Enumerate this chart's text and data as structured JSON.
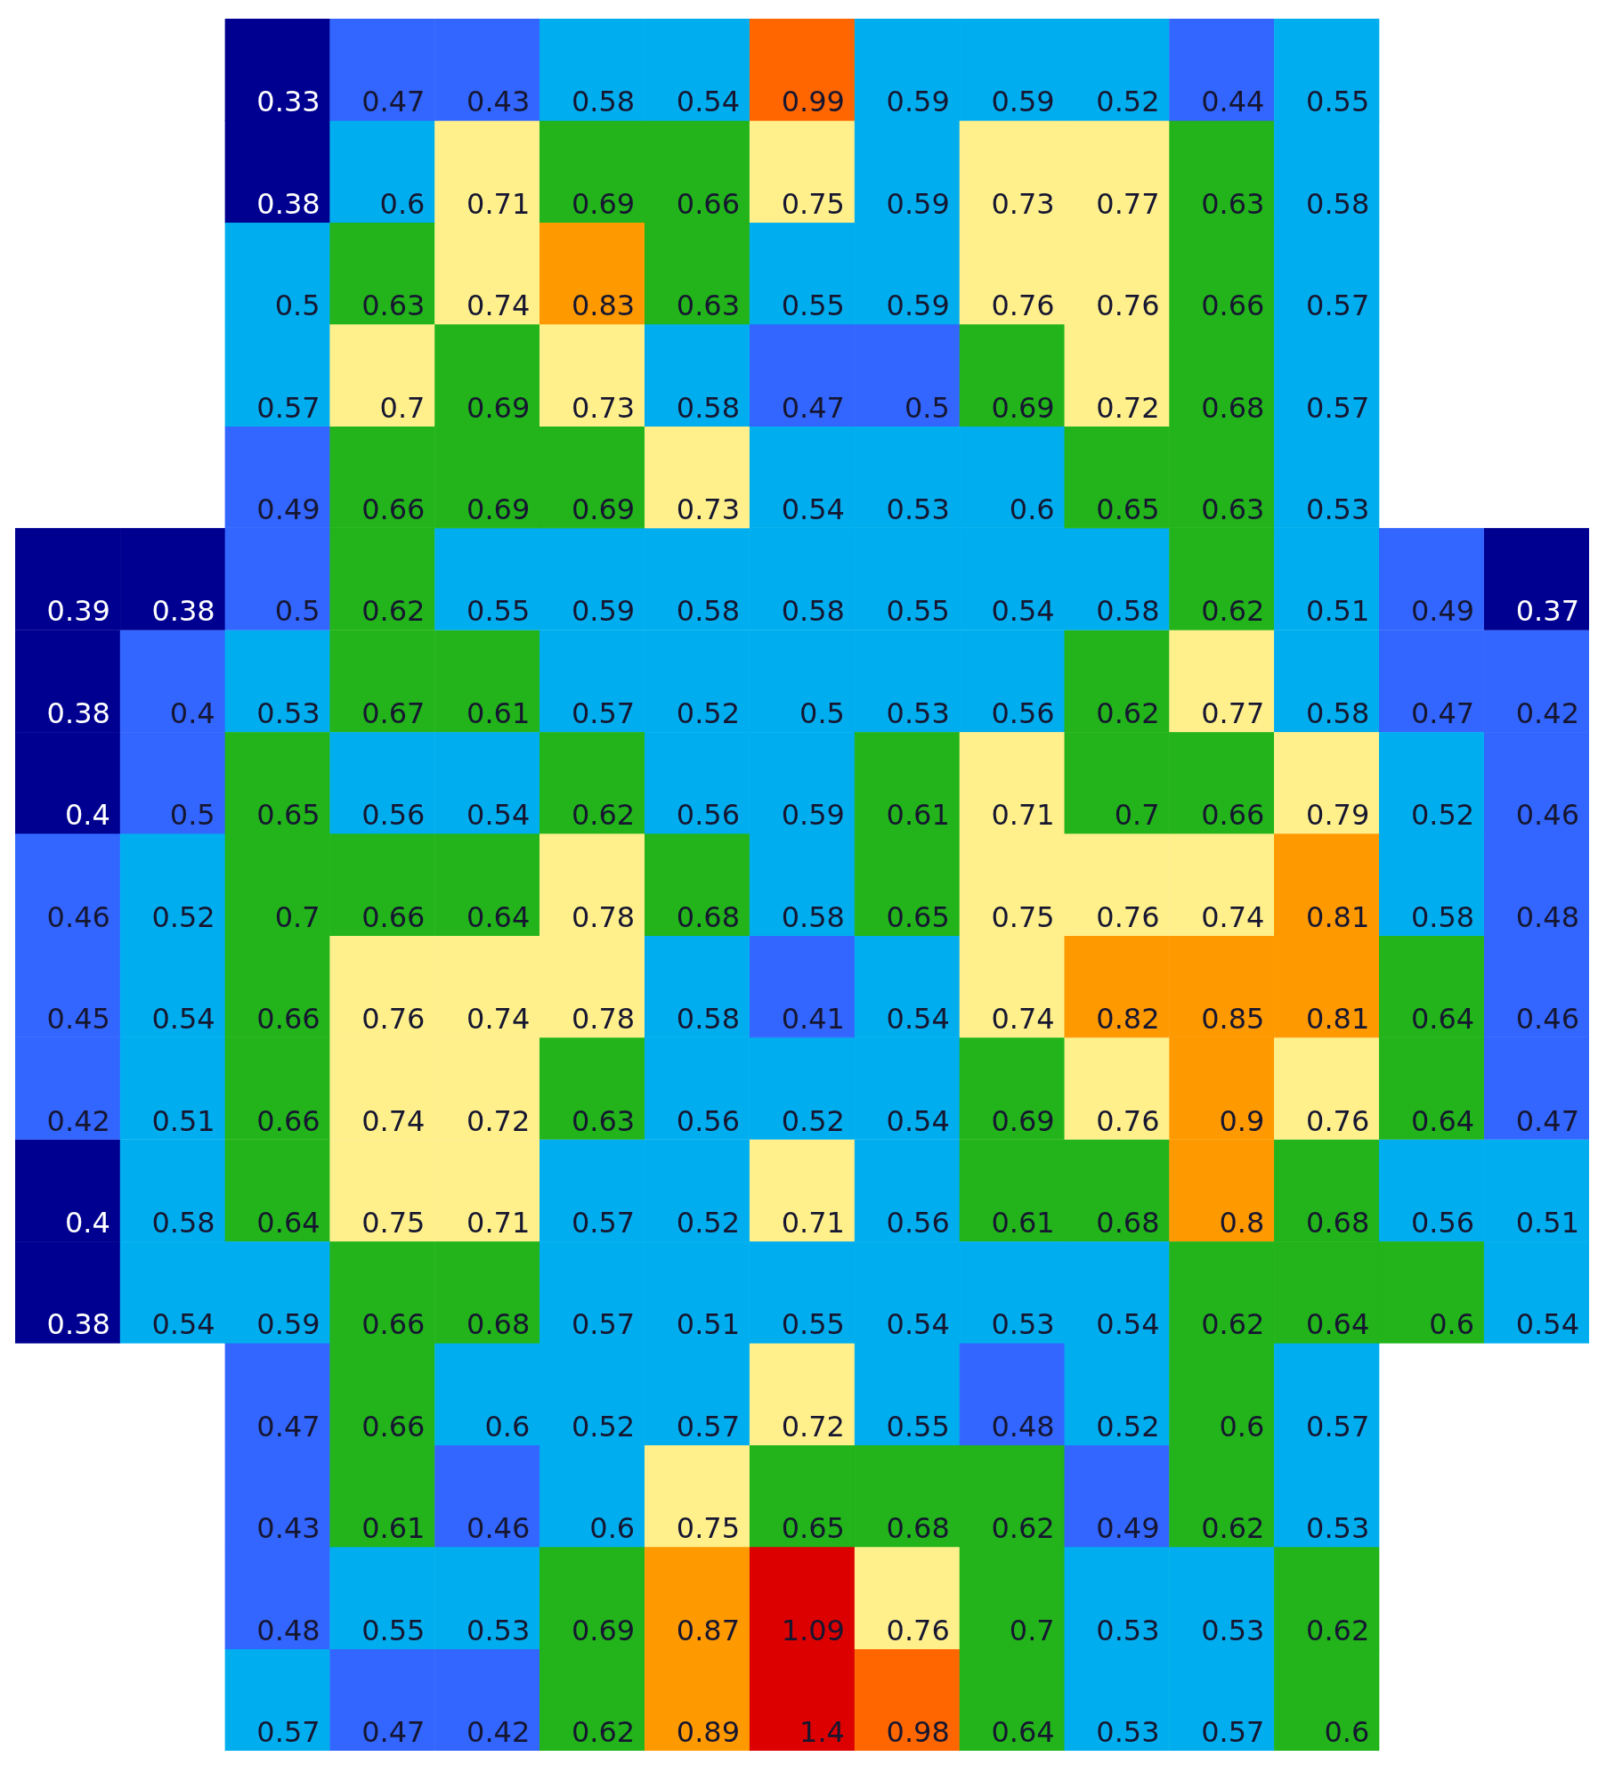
{
  "chart_data": {
    "type": "heatmap",
    "tick_labels": false,
    "data_labels": true,
    "categories": [
      null,
      null,
      null,
      null,
      null,
      null,
      null,
      null,
      null,
      null,
      null,
      null,
      null,
      null,
      null
    ],
    "y_categories": [
      null,
      null,
      null,
      null,
      null,
      null,
      null,
      null,
      null,
      null,
      null,
      null,
      null,
      null,
      null,
      null,
      null
    ],
    "cells": [
      [
        null,
        null,
        0.33,
        0.47,
        0.43,
        0.58,
        0.54,
        0.99,
        0.59,
        0.59,
        0.52,
        0.44,
        0.55,
        null,
        null
      ],
      [
        null,
        null,
        0.38,
        0.6,
        0.71,
        0.69,
        0.66,
        0.75,
        0.59,
        0.73,
        0.77,
        0.63,
        0.58,
        null,
        null
      ],
      [
        null,
        null,
        0.5,
        0.63,
        0.74,
        0.83,
        0.63,
        0.55,
        0.59,
        0.76,
        0.76,
        0.66,
        0.57,
        null,
        null
      ],
      [
        null,
        null,
        0.57,
        0.7,
        0.69,
        0.73,
        0.58,
        0.47,
        0.5,
        0.69,
        0.72,
        0.68,
        0.57,
        null,
        null
      ],
      [
        null,
        null,
        0.49,
        0.66,
        0.69,
        0.69,
        0.73,
        0.54,
        0.53,
        0.6,
        0.65,
        0.63,
        0.53,
        null,
        null
      ],
      [
        0.39,
        0.38,
        0.5,
        0.62,
        0.55,
        0.59,
        0.58,
        0.58,
        0.55,
        0.54,
        0.58,
        0.62,
        0.51,
        0.49,
        0.37
      ],
      [
        0.38,
        0.4,
        0.53,
        0.67,
        0.61,
        0.57,
        0.52,
        0.5,
        0.53,
        0.56,
        0.62,
        0.77,
        0.58,
        0.47,
        0.42
      ],
      [
        0.4,
        0.5,
        0.65,
        0.56,
        0.54,
        0.62,
        0.56,
        0.59,
        0.61,
        0.71,
        0.7,
        0.66,
        0.79,
        0.52,
        0.46
      ],
      [
        0.46,
        0.52,
        0.7,
        0.66,
        0.64,
        0.78,
        0.68,
        0.58,
        0.65,
        0.75,
        0.76,
        0.74,
        0.81,
        0.58,
        0.48
      ],
      [
        0.45,
        0.54,
        0.66,
        0.76,
        0.74,
        0.78,
        0.58,
        0.41,
        0.54,
        0.74,
        0.82,
        0.85,
        0.81,
        0.64,
        0.46
      ],
      [
        0.42,
        0.51,
        0.66,
        0.74,
        0.72,
        0.63,
        0.56,
        0.52,
        0.54,
        0.69,
        0.76,
        0.9,
        0.76,
        0.64,
        0.47
      ],
      [
        0.4,
        0.58,
        0.64,
        0.75,
        0.71,
        0.57,
        0.52,
        0.71,
        0.56,
        0.61,
        0.68,
        0.8,
        0.68,
        0.56,
        0.51
      ],
      [
        0.38,
        0.54,
        0.59,
        0.66,
        0.68,
        0.57,
        0.51,
        0.55,
        0.54,
        0.53,
        0.54,
        0.62,
        0.64,
        0.6,
        0.54
      ],
      [
        null,
        null,
        0.47,
        0.66,
        0.6,
        0.52,
        0.57,
        0.72,
        0.55,
        0.48,
        0.52,
        0.6,
        0.57,
        null,
        null
      ],
      [
        null,
        null,
        0.43,
        0.61,
        0.46,
        0.6,
        0.75,
        0.65,
        0.68,
        0.62,
        0.49,
        0.62,
        0.53,
        null,
        null
      ],
      [
        null,
        null,
        0.48,
        0.55,
        0.53,
        0.69,
        0.87,
        1.09,
        0.76,
        0.7,
        0.53,
        0.53,
        0.62,
        null,
        null
      ],
      [
        null,
        null,
        0.57,
        0.47,
        0.42,
        0.62,
        0.89,
        1.4,
        0.98,
        0.64,
        0.53,
        0.57,
        0.6,
        null,
        null
      ]
    ],
    "colors": [
      [
        null,
        null,
        "#000090",
        "#3366ff",
        "#3366ff",
        "#00aeef",
        "#00aeef",
        "#ff6600",
        "#00aeef",
        "#00aeef",
        "#00aeef",
        "#3366ff",
        "#00aeef",
        null,
        null
      ],
      [
        null,
        null,
        "#000090",
        "#00aeef",
        "#fff08c",
        "#22b41a",
        "#22b41a",
        "#fff08c",
        "#00aeef",
        "#fff08c",
        "#fff08c",
        "#22b41a",
        "#00aeef",
        null,
        null
      ],
      [
        null,
        null,
        "#00aeef",
        "#22b41a",
        "#fff08c",
        "#ff9900",
        "#22b41a",
        "#00aeef",
        "#00aeef",
        "#fff08c",
        "#fff08c",
        "#22b41a",
        "#00aeef",
        null,
        null
      ],
      [
        null,
        null,
        "#00aeef",
        "#fff08c",
        "#22b41a",
        "#fff08c",
        "#00aeef",
        "#3366ff",
        "#3366ff",
        "#22b41a",
        "#fff08c",
        "#22b41a",
        "#00aeef",
        null,
        null
      ],
      [
        null,
        null,
        "#3366ff",
        "#22b41a",
        "#22b41a",
        "#22b41a",
        "#fff08c",
        "#00aeef",
        "#00aeef",
        "#00aeef",
        "#22b41a",
        "#22b41a",
        "#00aeef",
        null,
        null
      ],
      [
        "#000090",
        "#000090",
        "#3366ff",
        "#22b41a",
        "#00aeef",
        "#00aeef",
        "#00aeef",
        "#00aeef",
        "#00aeef",
        "#00aeef",
        "#00aeef",
        "#22b41a",
        "#00aeef",
        "#3366ff",
        "#000090"
      ],
      [
        "#000090",
        "#3366ff",
        "#00aeef",
        "#22b41a",
        "#22b41a",
        "#00aeef",
        "#00aeef",
        "#00aeef",
        "#00aeef",
        "#00aeef",
        "#22b41a",
        "#fff08c",
        "#00aeef",
        "#3366ff",
        "#3366ff"
      ],
      [
        "#000090",
        "#3366ff",
        "#22b41a",
        "#00aeef",
        "#00aeef",
        "#22b41a",
        "#00aeef",
        "#00aeef",
        "#22b41a",
        "#fff08c",
        "#22b41a",
        "#22b41a",
        "#fff08c",
        "#00aeef",
        "#3366ff"
      ],
      [
        "#3366ff",
        "#00aeef",
        "#22b41a",
        "#22b41a",
        "#22b41a",
        "#fff08c",
        "#22b41a",
        "#00aeef",
        "#22b41a",
        "#fff08c",
        "#fff08c",
        "#fff08c",
        "#ff9900",
        "#00aeef",
        "#3366ff"
      ],
      [
        "#3366ff",
        "#00aeef",
        "#22b41a",
        "#fff08c",
        "#fff08c",
        "#fff08c",
        "#00aeef",
        "#3366ff",
        "#00aeef",
        "#fff08c",
        "#ff9900",
        "#ff9900",
        "#ff9900",
        "#22b41a",
        "#3366ff"
      ],
      [
        "#3366ff",
        "#00aeef",
        "#22b41a",
        "#fff08c",
        "#fff08c",
        "#22b41a",
        "#00aeef",
        "#00aeef",
        "#00aeef",
        "#22b41a",
        "#fff08c",
        "#ff9900",
        "#fff08c",
        "#22b41a",
        "#3366ff"
      ],
      [
        "#000090",
        "#00aeef",
        "#22b41a",
        "#fff08c",
        "#fff08c",
        "#00aeef",
        "#00aeef",
        "#fff08c",
        "#00aeef",
        "#22b41a",
        "#22b41a",
        "#ff9900",
        "#22b41a",
        "#00aeef",
        "#00aeef"
      ],
      [
        "#000090",
        "#00aeef",
        "#00aeef",
        "#22b41a",
        "#22b41a",
        "#00aeef",
        "#00aeef",
        "#00aeef",
        "#00aeef",
        "#00aeef",
        "#00aeef",
        "#22b41a",
        "#22b41a",
        "#22b41a",
        "#00aeef"
      ],
      [
        null,
        null,
        "#3366ff",
        "#22b41a",
        "#00aeef",
        "#00aeef",
        "#00aeef",
        "#fff08c",
        "#00aeef",
        "#3366ff",
        "#00aeef",
        "#22b41a",
        "#00aeef",
        null,
        null
      ],
      [
        null,
        null,
        "#3366ff",
        "#22b41a",
        "#3366ff",
        "#00aeef",
        "#fff08c",
        "#22b41a",
        "#22b41a",
        "#22b41a",
        "#3366ff",
        "#22b41a",
        "#00aeef",
        null,
        null
      ],
      [
        null,
        null,
        "#3366ff",
        "#00aeef",
        "#00aeef",
        "#22b41a",
        "#ff9900",
        "#dd0000",
        "#fff08c",
        "#22b41a",
        "#00aeef",
        "#00aeef",
        "#22b41a",
        null,
        null
      ],
      [
        null,
        null,
        "#00aeef",
        "#3366ff",
        "#3366ff",
        "#22b41a",
        "#ff9900",
        "#dd0000",
        "#ff6600",
        "#22b41a",
        "#00aeef",
        "#00aeef",
        "#22b41a",
        null,
        null
      ]
    ]
  }
}
